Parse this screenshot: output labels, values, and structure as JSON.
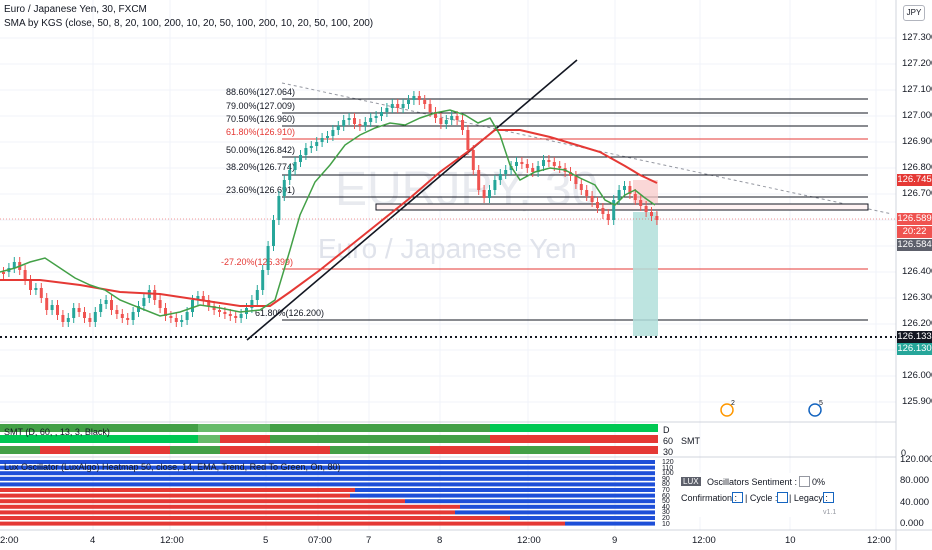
{
  "header": {
    "symbol_title": "Euro / Japanese Yen, 30, FXCM",
    "indicator": "SMA by KGS (close, 50, 8, 20, 100, 200, 10, 20, 50, 100, 200, 10, 20, 50, 100, 200)"
  },
  "watermark": {
    "ticker": "EURJPY, 30",
    "name": "Euro / Japanese Yen"
  },
  "currency_button": "JPY",
  "price_axis": [
    "127.300",
    "127.200",
    "127.100",
    "127.000",
    "126.900",
    "126.800",
    "126.700",
    "126.600",
    "126.500",
    "126.400",
    "126.300",
    "126.200",
    "126.100",
    "126.000",
    "125.900"
  ],
  "price_tags": [
    {
      "label": "126.745",
      "color": "#e53935"
    },
    {
      "label": "126.589",
      "color": "#ef5350"
    },
    {
      "label": "20:22",
      "color": "#ef5350"
    },
    {
      "label": "126.584",
      "color": "#5d606b"
    },
    {
      "label": "126.133",
      "color": "#131722"
    },
    {
      "label": "126.130",
      "color": "#26a69a"
    }
  ],
  "fib_levels": [
    {
      "label": "88.60%(127.064)",
      "color": "#131722"
    },
    {
      "label": "79.00%(127.009)",
      "color": "#131722"
    },
    {
      "label": "70.50%(126.960)",
      "color": "#131722"
    },
    {
      "label": "61.80%(126.910)",
      "color": "#e53935"
    },
    {
      "label": "50.00%(126.842)",
      "color": "#131722"
    },
    {
      "label": "38.20%(126.774)",
      "color": "#131722"
    },
    {
      "label": "23.60%(126.691)",
      "color": "#131722"
    },
    {
      "label": "-27.20%(126.399)",
      "color": "#e53935"
    },
    {
      "label": "61.80%(126.200)",
      "color": "#131722"
    }
  ],
  "smt_panel": {
    "title": "SMT (D, 60, , 13, 3, Black)",
    "rows": [
      "D",
      "60",
      "30"
    ],
    "side_label": "SMT",
    "axis": "0"
  },
  "oscillator_panel": {
    "title": "Lux Oscillator (LuxAlgo) Heatmap 50, close, 14, EMA, Trend, Red To Green, On, 80)",
    "sentiment_tag": "LUX",
    "sentiment_label": "Oscillators Sentiment :",
    "sentiment_value": "0%",
    "confirmation_label": "Confirmation :",
    "cycle_label": "| Cycle :",
    "legacy_label": "| Legacy :",
    "version": "v1.1",
    "levels": [
      "120",
      "110",
      "100",
      "90",
      "80",
      "70",
      "60",
      "50",
      "40",
      "30",
      "20",
      "10"
    ],
    "axis": [
      "120.000",
      "80.000",
      "40.000",
      "0.000"
    ]
  },
  "time_axis": [
    "2:00",
    "4",
    "12:00",
    "5",
    "07:00",
    "7",
    "8",
    "12:00",
    "9",
    "12:00",
    "10",
    "12:00"
  ],
  "events": [
    "2",
    "5"
  ]
}
